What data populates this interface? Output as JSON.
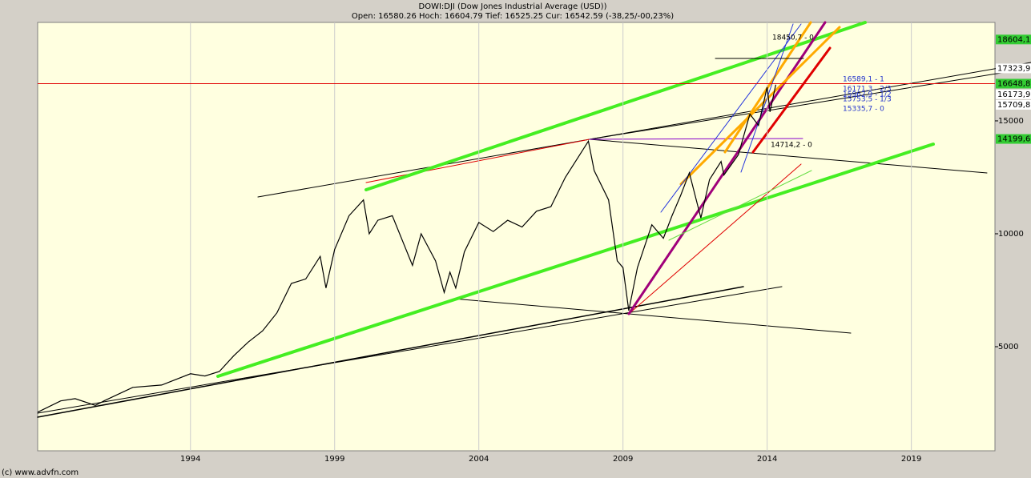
{
  "chart_data": {
    "type": "line",
    "title": "DOWI:DJI (Dow Jones Industrial Average (USD))",
    "subtitle": "Open: 16580.26 Hoch: 16604.79 Tief: 16525.25 Cur: 16542.59 (-38,25/-00,23%)",
    "footer": "(c) www.advfn.com",
    "x": [
      1988.7,
      1989.5,
      1990,
      1990.7,
      1991,
      1992,
      1993,
      1994,
      1994.5,
      1995,
      1995.5,
      1996,
      1996.5,
      1997,
      1997.5,
      1998,
      1998.5,
      1998.7,
      1999,
      1999.5,
      2000,
      2000.2,
      2000.5,
      2001,
      2001.7,
      2002,
      2002.5,
      2002.8,
      2003,
      2003.2,
      2003.5,
      2004,
      2004.5,
      2005,
      2005.5,
      2006,
      2006.5,
      2007,
      2007.5,
      2007.8,
      2008,
      2008.5,
      2008.8,
      2009,
      2009.2,
      2009.5,
      2010,
      2010.4,
      2010.7,
      2011,
      2011.3,
      2011.7,
      2012,
      2012.4,
      2012.5,
      2013,
      2013.4,
      2013.7,
      2014,
      2014.1,
      2014.3
    ],
    "series": [
      {
        "name": "DOWI:DJI",
        "color": "#000000",
        "values": [
          2100,
          2600,
          2700,
          2400,
          2600,
          3200,
          3300,
          3800,
          3700,
          3900,
          4600,
          5200,
          5700,
          6500,
          7800,
          8000,
          9000,
          7600,
          9300,
          10800,
          11500,
          10000,
          10600,
          10800,
          8600,
          10000,
          8800,
          7400,
          8300,
          7600,
          9200,
          10500,
          10100,
          10600,
          10300,
          11000,
          11200,
          12500,
          13500,
          14100,
          12800,
          11500,
          8800,
          8500,
          6600,
          8500,
          10400,
          9800,
          10800,
          11700,
          12700,
          10700,
          12400,
          13200,
          12600,
          13500,
          15300,
          14800,
          16500,
          15400,
          16600
        ]
      }
    ],
    "xlim": [
      1988.7,
      2021.9
    ],
    "xticks": [
      1994,
      1999,
      2004,
      2009,
      2014,
      2019
    ],
    "ylim": [
      390,
      19360
    ],
    "yticks": [
      5000,
      10000,
      15000
    ],
    "price_labels": [
      {
        "value": 18604.1,
        "label": "18604,1",
        "color": "#33cc33"
      },
      {
        "value": 17323.9,
        "label": "17323,9",
        "color": "#ffffff"
      },
      {
        "value": 16648.8,
        "label": "16648,8",
        "color": "#33cc33",
        "line_color": "#e00000"
      },
      {
        "value": 16173.9,
        "label": "16173,9",
        "color": "#ffffff"
      },
      {
        "value": 15709.8,
        "label": "15709,8",
        "color": "#ffffff"
      },
      {
        "value": 14199.6,
        "label": "14199,6",
        "color": "#33cc33"
      }
    ],
    "annotations": [
      "18450,7 - 0",
      "16589,1 - 1",
      "16171,3 - 2/3",
      "15962,9 - 1/2",
      "15753,5 - 1/3",
      "15335,7 - 0",
      "14714,2 - 0"
    ]
  }
}
